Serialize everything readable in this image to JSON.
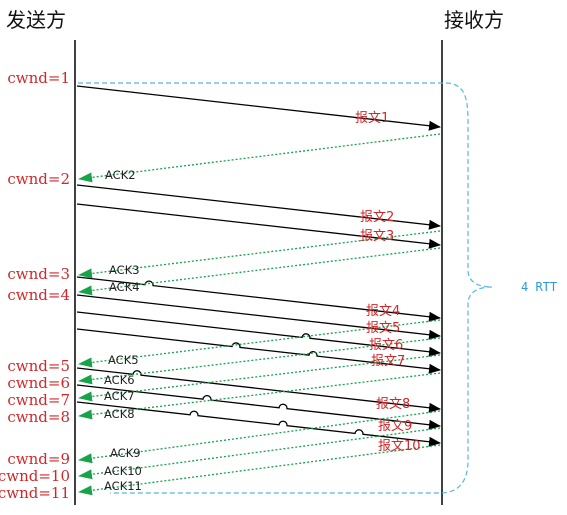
{
  "headers": {
    "sender": "发送方",
    "receiver": "接收方"
  },
  "cwnd_labels": [
    "cwnd=1",
    "cwnd=2",
    "cwnd=3",
    "cwnd=4",
    "cwnd=5",
    "cwnd=6",
    "cwnd=7",
    "cwnd=8",
    "cwnd=9",
    "cwnd=10",
    "cwnd=11"
  ],
  "packets": [
    "报文1",
    "报文2",
    "报文3",
    "报文4",
    "报文5",
    "报文6",
    "报文7",
    "报文8",
    "报文9",
    "报文10"
  ],
  "acks": [
    "ACK2",
    "ACK3",
    "ACK4",
    "ACK5",
    "ACK6",
    "ACK7",
    "ACK8",
    "ACK9",
    "ACK10",
    "ACK11"
  ],
  "rtt_label": "4 RTT",
  "colors": {
    "packet_arrow": "#000000",
    "ack_arrow": "#17a34a",
    "cwnd_text": "#d0282a",
    "bracket": "#55b8e6"
  }
}
